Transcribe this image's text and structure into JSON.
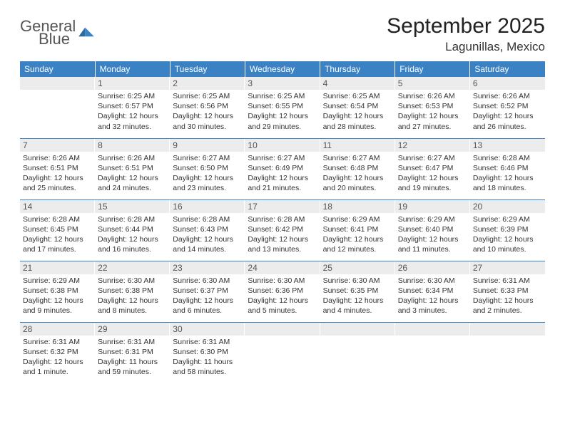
{
  "brand": {
    "line1": "General",
    "line2": "Blue"
  },
  "title": "September 2025",
  "location": "Lagunillas, Mexico",
  "colors": {
    "header_bg": "#3b82c4",
    "header_fg": "#ffffff",
    "daynum_bg": "#ececec",
    "rule": "#3b82c4",
    "text": "#333333"
  },
  "layout": {
    "cols": 7,
    "rows": 5,
    "first_day_col": 1
  },
  "weekdays": [
    "Sunday",
    "Monday",
    "Tuesday",
    "Wednesday",
    "Thursday",
    "Friday",
    "Saturday"
  ],
  "days": [
    {
      "n": 1,
      "sunrise": "6:25 AM",
      "sunset": "6:57 PM",
      "daylight": "12 hours and 32 minutes."
    },
    {
      "n": 2,
      "sunrise": "6:25 AM",
      "sunset": "6:56 PM",
      "daylight": "12 hours and 30 minutes."
    },
    {
      "n": 3,
      "sunrise": "6:25 AM",
      "sunset": "6:55 PM",
      "daylight": "12 hours and 29 minutes."
    },
    {
      "n": 4,
      "sunrise": "6:25 AM",
      "sunset": "6:54 PM",
      "daylight": "12 hours and 28 minutes."
    },
    {
      "n": 5,
      "sunrise": "6:26 AM",
      "sunset": "6:53 PM",
      "daylight": "12 hours and 27 minutes."
    },
    {
      "n": 6,
      "sunrise": "6:26 AM",
      "sunset": "6:52 PM",
      "daylight": "12 hours and 26 minutes."
    },
    {
      "n": 7,
      "sunrise": "6:26 AM",
      "sunset": "6:51 PM",
      "daylight": "12 hours and 25 minutes."
    },
    {
      "n": 8,
      "sunrise": "6:26 AM",
      "sunset": "6:51 PM",
      "daylight": "12 hours and 24 minutes."
    },
    {
      "n": 9,
      "sunrise": "6:27 AM",
      "sunset": "6:50 PM",
      "daylight": "12 hours and 23 minutes."
    },
    {
      "n": 10,
      "sunrise": "6:27 AM",
      "sunset": "6:49 PM",
      "daylight": "12 hours and 21 minutes."
    },
    {
      "n": 11,
      "sunrise": "6:27 AM",
      "sunset": "6:48 PM",
      "daylight": "12 hours and 20 minutes."
    },
    {
      "n": 12,
      "sunrise": "6:27 AM",
      "sunset": "6:47 PM",
      "daylight": "12 hours and 19 minutes."
    },
    {
      "n": 13,
      "sunrise": "6:28 AM",
      "sunset": "6:46 PM",
      "daylight": "12 hours and 18 minutes."
    },
    {
      "n": 14,
      "sunrise": "6:28 AM",
      "sunset": "6:45 PM",
      "daylight": "12 hours and 17 minutes."
    },
    {
      "n": 15,
      "sunrise": "6:28 AM",
      "sunset": "6:44 PM",
      "daylight": "12 hours and 16 minutes."
    },
    {
      "n": 16,
      "sunrise": "6:28 AM",
      "sunset": "6:43 PM",
      "daylight": "12 hours and 14 minutes."
    },
    {
      "n": 17,
      "sunrise": "6:28 AM",
      "sunset": "6:42 PM",
      "daylight": "12 hours and 13 minutes."
    },
    {
      "n": 18,
      "sunrise": "6:29 AM",
      "sunset": "6:41 PM",
      "daylight": "12 hours and 12 minutes."
    },
    {
      "n": 19,
      "sunrise": "6:29 AM",
      "sunset": "6:40 PM",
      "daylight": "12 hours and 11 minutes."
    },
    {
      "n": 20,
      "sunrise": "6:29 AM",
      "sunset": "6:39 PM",
      "daylight": "12 hours and 10 minutes."
    },
    {
      "n": 21,
      "sunrise": "6:29 AM",
      "sunset": "6:38 PM",
      "daylight": "12 hours and 9 minutes."
    },
    {
      "n": 22,
      "sunrise": "6:30 AM",
      "sunset": "6:38 PM",
      "daylight": "12 hours and 8 minutes."
    },
    {
      "n": 23,
      "sunrise": "6:30 AM",
      "sunset": "6:37 PM",
      "daylight": "12 hours and 6 minutes."
    },
    {
      "n": 24,
      "sunrise": "6:30 AM",
      "sunset": "6:36 PM",
      "daylight": "12 hours and 5 minutes."
    },
    {
      "n": 25,
      "sunrise": "6:30 AM",
      "sunset": "6:35 PM",
      "daylight": "12 hours and 4 minutes."
    },
    {
      "n": 26,
      "sunrise": "6:30 AM",
      "sunset": "6:34 PM",
      "daylight": "12 hours and 3 minutes."
    },
    {
      "n": 27,
      "sunrise": "6:31 AM",
      "sunset": "6:33 PM",
      "daylight": "12 hours and 2 minutes."
    },
    {
      "n": 28,
      "sunrise": "6:31 AM",
      "sunset": "6:32 PM",
      "daylight": "12 hours and 1 minute."
    },
    {
      "n": 29,
      "sunrise": "6:31 AM",
      "sunset": "6:31 PM",
      "daylight": "11 hours and 59 minutes."
    },
    {
      "n": 30,
      "sunrise": "6:31 AM",
      "sunset": "6:30 PM",
      "daylight": "11 hours and 58 minutes."
    }
  ],
  "labels": {
    "sunrise": "Sunrise:",
    "sunset": "Sunset:",
    "daylight": "Daylight:"
  }
}
